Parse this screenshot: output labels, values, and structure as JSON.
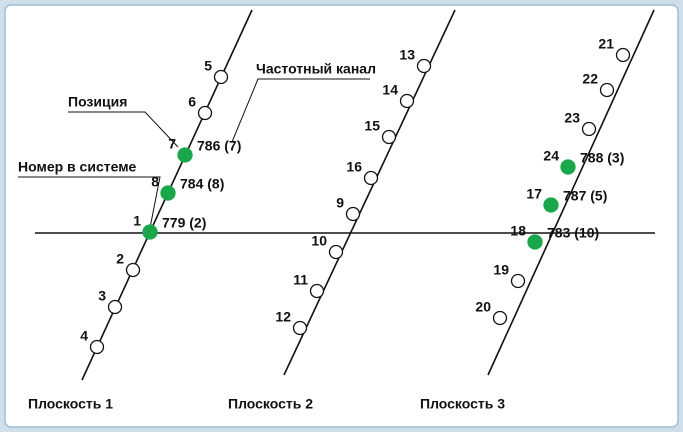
{
  "callouts": [
    "Позиция",
    "Номер в системе",
    "Частотный канал"
  ],
  "planes": [
    "Плоскость 1",
    "Плоскость 2",
    "Плоскость 3"
  ],
  "nodes": [
    {
      "label": "5",
      "filled": false
    },
    {
      "label": "6",
      "filled": false
    },
    {
      "label": "7",
      "filled": true,
      "channel": "786 (7)"
    },
    {
      "label": "8",
      "filled": true,
      "channel": "784 (8)"
    },
    {
      "label": "1",
      "filled": true,
      "channel": "779 (2)"
    },
    {
      "label": "2",
      "filled": false
    },
    {
      "label": "3",
      "filled": false
    },
    {
      "label": "4",
      "filled": false
    },
    {
      "label": "13",
      "filled": false
    },
    {
      "label": "14",
      "filled": false
    },
    {
      "label": "15",
      "filled": false
    },
    {
      "label": "16",
      "filled": false
    },
    {
      "label": "9",
      "filled": false
    },
    {
      "label": "10",
      "filled": false
    },
    {
      "label": "11",
      "filled": false
    },
    {
      "label": "12",
      "filled": false
    },
    {
      "label": "21",
      "filled": false
    },
    {
      "label": "22",
      "filled": false
    },
    {
      "label": "23",
      "filled": false
    },
    {
      "label": "24",
      "filled": true,
      "channel": "788 (3)"
    },
    {
      "label": "17",
      "filled": true,
      "channel": "787 (5)"
    },
    {
      "label": "18",
      "filled": true,
      "channel": "783 (10)"
    },
    {
      "label": "19",
      "filled": false
    },
    {
      "label": "20",
      "filled": false
    }
  ]
}
